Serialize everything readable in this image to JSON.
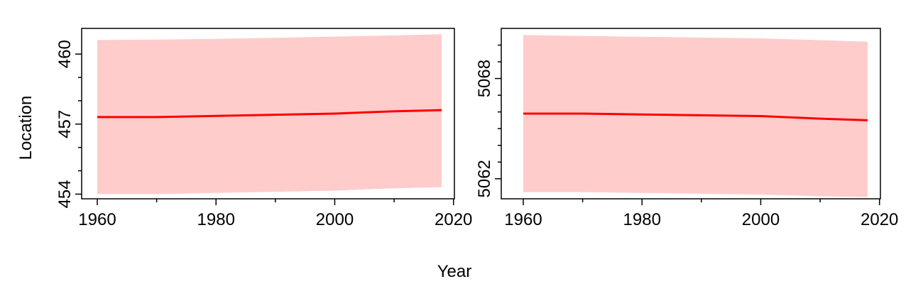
{
  "figure": {
    "xlabel": "Year",
    "ylabel": "Location"
  },
  "colors": {
    "line": "#ff0000",
    "band": "#ffcccc",
    "axis": "#000000"
  },
  "chart_data": [
    {
      "type": "line",
      "title": "",
      "xlim": [
        1960,
        2018
      ],
      "ylim": [
        453.8,
        461.1
      ],
      "xticks": [
        1960,
        1980,
        2000,
        2020
      ],
      "xminor": [
        1970,
        1990,
        2010
      ],
      "yticks": [
        454,
        457,
        460
      ],
      "yminor": [
        455,
        456,
        458,
        459
      ],
      "x": [
        1960,
        1970,
        1980,
        1990,
        2000,
        2010,
        2018
      ],
      "y": [
        457.3,
        457.3,
        457.35,
        457.4,
        457.45,
        457.55,
        457.6
      ],
      "upper": [
        460.6,
        460.62,
        460.65,
        460.7,
        460.75,
        460.8,
        460.85
      ],
      "lower": [
        454.0,
        454.0,
        454.05,
        454.1,
        454.15,
        454.25,
        454.3
      ],
      "series": [
        {
          "name": "",
          "role": "estimate"
        },
        {
          "name": "",
          "role": "confidence-band"
        }
      ]
    },
    {
      "type": "line",
      "title": "",
      "xlim": [
        1960,
        2018
      ],
      "ylim": [
        5060.8,
        5071.0
      ],
      "xticks": [
        1960,
        1980,
        2000,
        2020
      ],
      "xminor": [
        1970,
        1990,
        2010
      ],
      "yticks": [
        5062,
        5068
      ],
      "yminor": [
        5063,
        5064,
        5065,
        5066,
        5067,
        5069,
        5070
      ],
      "x": [
        1960,
        1970,
        1980,
        1990,
        2000,
        2010,
        2018
      ],
      "y": [
        5065.9,
        5065.9,
        5065.85,
        5065.8,
        5065.75,
        5065.6,
        5065.5
      ],
      "upper": [
        5070.6,
        5070.55,
        5070.5,
        5070.45,
        5070.4,
        5070.3,
        5070.2
      ],
      "lower": [
        5061.2,
        5061.2,
        5061.15,
        5061.1,
        5061.05,
        5060.95,
        5060.9
      ],
      "series": [
        {
          "name": "",
          "role": "estimate"
        },
        {
          "name": "",
          "role": "confidence-band"
        }
      ]
    }
  ]
}
